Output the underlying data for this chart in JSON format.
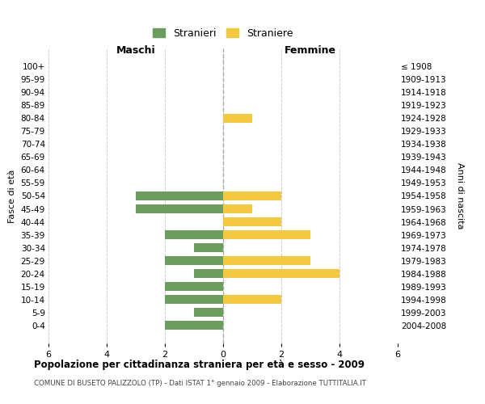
{
  "age_groups": [
    "100+",
    "95-99",
    "90-94",
    "85-89",
    "80-84",
    "75-79",
    "70-74",
    "65-69",
    "60-64",
    "55-59",
    "50-54",
    "45-49",
    "40-44",
    "35-39",
    "30-34",
    "25-29",
    "20-24",
    "15-19",
    "10-14",
    "5-9",
    "0-4"
  ],
  "birth_years": [
    "≤ 1908",
    "1909-1913",
    "1914-1918",
    "1919-1923",
    "1924-1928",
    "1929-1933",
    "1934-1938",
    "1939-1943",
    "1944-1948",
    "1949-1953",
    "1954-1958",
    "1959-1963",
    "1964-1968",
    "1969-1973",
    "1974-1978",
    "1979-1983",
    "1984-1988",
    "1989-1993",
    "1994-1998",
    "1999-2003",
    "2004-2008"
  ],
  "maschi": [
    0,
    0,
    0,
    0,
    0,
    0,
    0,
    0,
    0,
    0,
    3,
    3,
    0,
    2,
    1,
    2,
    1,
    2,
    2,
    1,
    2
  ],
  "femmine": [
    0,
    0,
    0,
    0,
    1,
    0,
    0,
    0,
    0,
    0,
    2,
    1,
    2,
    3,
    0,
    3,
    4,
    0,
    2,
    0,
    0
  ],
  "color_maschi": "#6b9e5e",
  "color_femmine": "#f5c842",
  "title": "Popolazione per cittadinanza straniera per età e sesso - 2009",
  "subtitle": "COMUNE DI BUSETO PALIZZOLO (TP) - Dati ISTAT 1° gennaio 2009 - Elaborazione TUTTITALIA.IT",
  "ylabel_left": "Fasce di età",
  "ylabel_right": "Anni di nascita",
  "legend_maschi": "Stranieri",
  "legend_femmine": "Straniere",
  "header_left": "Maschi",
  "header_right": "Femmine",
  "xlim": 6,
  "background_color": "#ffffff",
  "grid_color": "#cccccc"
}
